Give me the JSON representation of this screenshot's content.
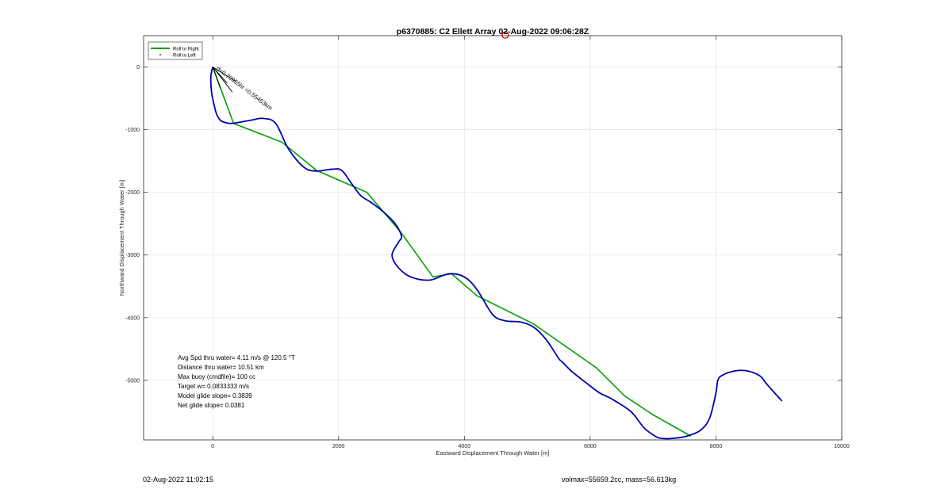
{
  "chart_data": {
    "type": "line",
    "title": "p6370885: C2 Ellett Array 02-Aug-2022 09:06:28Z",
    "xlabel": "Eastward Displacement Through Water [m]",
    "ylabel": "Northward Displacement Through Water [m]",
    "xlim": [
      -1100,
      10000
    ],
    "ylim": [
      -5950,
      500
    ],
    "xticks": [
      0,
      2000,
      4000,
      6000,
      8000,
      10000
    ],
    "yticks": [
      0,
      -1000,
      -2000,
      -3000,
      -4000,
      -5000
    ],
    "grid": true,
    "legend": {
      "placement": "top-left",
      "entries": [
        "Roll to Right",
        "Roll to Left"
      ]
    },
    "colors": {
      "roll_right": "#00a000",
      "track": "#0000b0",
      "marker": "#d00000",
      "vector": "#000000"
    },
    "series": [
      {
        "name": "Roll to Right",
        "x": [
          0,
          330,
          1100,
          1650,
          2450,
          3000,
          3500,
          3800,
          4200,
          5100,
          5600,
          6100,
          6550,
          7000,
          7600
        ],
        "y": [
          0,
          -900,
          -1200,
          -1650,
          -2000,
          -2650,
          -3350,
          -3300,
          -3650,
          -4100,
          -4450,
          -4800,
          -5250,
          -5550,
          -5890
        ]
      },
      {
        "name": "",
        "x": [
          0,
          -30,
          -20,
          20,
          60,
          120,
          180,
          300,
          600,
          800,
          1000,
          1200,
          1450,
          1650,
          1900,
          2050,
          2200,
          2350,
          2500,
          2700,
          2900,
          3000,
          2950,
          2850,
          2950,
          3150,
          3450,
          3750,
          4000,
          4200,
          4450,
          4650,
          4900,
          5100,
          5300,
          5500,
          5550,
          5700,
          5950,
          6150,
          6350,
          6650,
          6850,
          7000,
          7100,
          7250,
          7500,
          7750,
          7900,
          8000,
          8030,
          8100,
          8300,
          8500,
          8700,
          8800,
          8950,
          9050
        ],
        "y": [
          0,
          -150,
          -400,
          -600,
          -750,
          -850,
          -880,
          -900,
          -850,
          -820,
          -900,
          -1300,
          -1600,
          -1660,
          -1630,
          -1650,
          -1850,
          -2050,
          -2150,
          -2300,
          -2500,
          -2700,
          -2800,
          -3000,
          -3200,
          -3350,
          -3400,
          -3300,
          -3350,
          -3550,
          -3950,
          -4050,
          -4070,
          -4150,
          -4350,
          -4650,
          -4700,
          -4850,
          -5050,
          -5200,
          -5300,
          -5500,
          -5750,
          -5870,
          -5920,
          -5930,
          -5900,
          -5800,
          -5600,
          -5200,
          -5000,
          -4920,
          -4850,
          -4850,
          -4930,
          -5050,
          -5220,
          -5330
        ]
      }
    ],
    "marker_point": {
      "x": 4650,
      "y": 510
    },
    "vector_label": "d=0.70955hr =0.55453km",
    "annotations": [
      "Avg Spd thru water=  4.11 m/s @ 120.5 °T",
      "Distance thru water= 10.51 km",
      "Max buoy (cmdfile)= 100 cc",
      "Target w= 0.0833333 m/s",
      "Model glide slope= 0.3839",
      "Net glide slope= 0.0381"
    ],
    "footer_left": "02-Aug-2022 11:02:15",
    "footer_right": "volmax=55659.2cc, mass=56.613kg"
  }
}
